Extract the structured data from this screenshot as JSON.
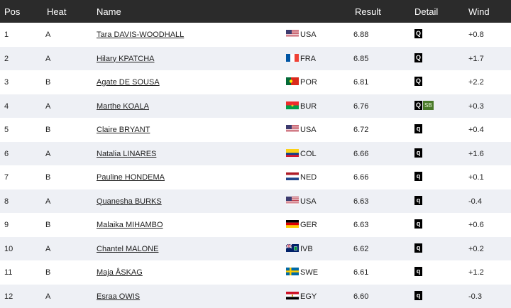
{
  "header": {
    "pos": "Pos",
    "heat": "Heat",
    "name": "Name",
    "result": "Result",
    "detail": "Detail",
    "wind": "Wind"
  },
  "rows": [
    {
      "pos": "1",
      "heat": "A",
      "name": "Tara DAVIS-WOODHALL",
      "country": "USA",
      "flag": "usa-flag-icon",
      "result": "6.88",
      "qual": "Q",
      "extra": "",
      "wind": "+0.8"
    },
    {
      "pos": "2",
      "heat": "A",
      "name": "Hilary KPATCHA",
      "country": "FRA",
      "flag": "france-flag-icon",
      "result": "6.85",
      "qual": "Q",
      "extra": "",
      "wind": "+1.7"
    },
    {
      "pos": "3",
      "heat": "B",
      "name": "Agate DE SOUSA",
      "country": "POR",
      "flag": "portugal-flag-icon",
      "result": "6.81",
      "qual": "Q",
      "extra": "",
      "wind": "+2.2"
    },
    {
      "pos": "4",
      "heat": "A",
      "name": "Marthe KOALA",
      "country": "BUR",
      "flag": "burkina-faso-flag-icon",
      "result": "6.76",
      "qual": "Q",
      "extra": "SB",
      "wind": "+0.3"
    },
    {
      "pos": "5",
      "heat": "B",
      "name": "Claire BRYANT",
      "country": "USA",
      "flag": "usa-flag-icon",
      "result": "6.72",
      "qual": "q",
      "extra": "",
      "wind": "+0.4"
    },
    {
      "pos": "6",
      "heat": "A",
      "name": "Natalia LINARES",
      "country": "COL",
      "flag": "colombia-flag-icon",
      "result": "6.66",
      "qual": "q",
      "extra": "",
      "wind": "+1.6"
    },
    {
      "pos": "7",
      "heat": "B",
      "name": "Pauline HONDEMA",
      "country": "NED",
      "flag": "netherlands-flag-icon",
      "result": "6.66",
      "qual": "q",
      "extra": "",
      "wind": "+0.1"
    },
    {
      "pos": "8",
      "heat": "A",
      "name": "Quanesha BURKS",
      "country": "USA",
      "flag": "usa-flag-icon",
      "result": "6.63",
      "qual": "q",
      "extra": "",
      "wind": "-0.4"
    },
    {
      "pos": "9",
      "heat": "B",
      "name": "Malaika MIHAMBO",
      "country": "GER",
      "flag": "germany-flag-icon",
      "result": "6.63",
      "qual": "q",
      "extra": "",
      "wind": "+0.6"
    },
    {
      "pos": "10",
      "heat": "A",
      "name": "Chantel MALONE",
      "country": "IVB",
      "flag": "british-virgin-islands-flag-icon",
      "result": "6.62",
      "qual": "q",
      "extra": "",
      "wind": "+0.2"
    },
    {
      "pos": "11",
      "heat": "B",
      "name": "Maja ÅSKAG",
      "country": "SWE",
      "flag": "sweden-flag-icon",
      "result": "6.61",
      "qual": "q",
      "extra": "",
      "wind": "+1.2"
    },
    {
      "pos": "12",
      "heat": "A",
      "name": "Esraa OWIS",
      "country": "EGY",
      "flag": "egypt-flag-icon",
      "result": "6.60",
      "qual": "q",
      "extra": "",
      "wind": "-0.3"
    }
  ],
  "colors": {
    "header_bg": "#2b2b2b",
    "row_alt_bg": "#eef0f5",
    "badge_bg": "#000000",
    "sb_bg": "#4a7a2a"
  }
}
